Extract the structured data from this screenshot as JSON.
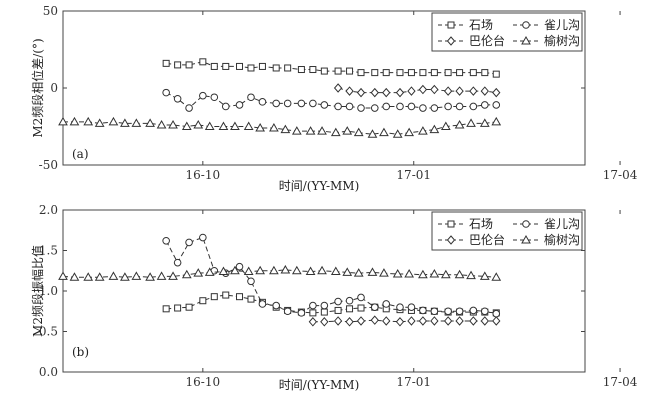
{
  "chart_data": [
    {
      "type": "line",
      "panel_label": "(a)",
      "ylabel": "M2频段相位差/(°)",
      "xlabel": "时间/(YY-MM)",
      "ylim": [
        -50,
        50
      ],
      "yticks": [
        -50,
        0,
        50
      ],
      "xlim": [
        -61,
        128
      ],
      "xticks": [
        {
          "label": "16-10",
          "value": 0
        },
        {
          "label": "17-01",
          "value": 92
        },
        {
          "label": "17-04",
          "value": 182
        }
      ],
      "legend_position": "top-right",
      "series": [
        {
          "name": "石场",
          "marker": "square",
          "x": [
            -16,
            -11,
            -6,
            0,
            5,
            10,
            16,
            21,
            26,
            32,
            37,
            43,
            48,
            53,
            59,
            64,
            69,
            75,
            80,
            86,
            91,
            96,
            101,
            107,
            112,
            118,
            123,
            128
          ],
          "y": [
            16,
            15,
            15,
            17,
            14,
            14,
            14,
            13,
            14,
            13,
            13,
            12,
            12,
            11,
            11,
            11,
            10,
            10,
            10,
            10,
            10,
            10,
            10,
            10,
            10,
            10,
            10,
            9
          ]
        },
        {
          "name": "雀儿沟",
          "marker": "circle",
          "x": [
            -16,
            -11,
            -6,
            0,
            5,
            10,
            16,
            21,
            26,
            32,
            37,
            43,
            48,
            53,
            59,
            64,
            69,
            75,
            80,
            86,
            91,
            96,
            101,
            107,
            112,
            118,
            123,
            128
          ],
          "y": [
            -3,
            -7,
            -13,
            -5,
            -6,
            -12,
            -11,
            -6,
            -9,
            -10,
            -10,
            -10,
            -10,
            -11,
            -12,
            -12,
            -13,
            -13,
            -12,
            -12,
            -12,
            -13,
            -13,
            -12,
            -12,
            -12,
            -11,
            -11
          ]
        },
        {
          "name": "巴伦台",
          "marker": "diamond",
          "x": [
            59,
            64,
            69,
            75,
            80,
            86,
            91,
            96,
            101,
            107,
            112,
            118,
            123,
            128
          ],
          "y": [
            0,
            -2,
            -3,
            -3,
            -3,
            -3,
            -2,
            -1,
            -1,
            -2,
            -2,
            -2,
            -2,
            -3
          ]
        },
        {
          "name": "榆树沟",
          "marker": "triangle",
          "x": [
            -61,
            -56,
            -50,
            -45,
            -39,
            -34,
            -29,
            -23,
            -18,
            -13,
            -7,
            -2,
            3,
            9,
            14,
            20,
            25,
            31,
            36,
            41,
            47,
            52,
            58,
            63,
            68,
            74,
            79,
            85,
            90,
            96,
            101,
            106,
            112,
            117,
            123,
            128
          ],
          "y": [
            -22,
            -22,
            -22,
            -23,
            -22,
            -23,
            -23,
            -23,
            -24,
            -24,
            -25,
            -24,
            -25,
            -25,
            -25,
            -25,
            -26,
            -26,
            -27,
            -28,
            -28,
            -28,
            -29,
            -28,
            -29,
            -30,
            -29,
            -30,
            -29,
            -28,
            -27,
            -25,
            -24,
            -23,
            -23,
            -22
          ]
        }
      ]
    },
    {
      "type": "line",
      "panel_label": "(b)",
      "ylabel": "M2频段振幅比值",
      "xlabel": "时间/(YY-MM)",
      "ylim": [
        0,
        2.0
      ],
      "yticks": [
        0.0,
        0.5,
        1.0,
        1.5,
        2.0
      ],
      "xlim": [
        -61,
        128
      ],
      "xticks": [
        {
          "label": "16-10",
          "value": 0
        },
        {
          "label": "17-01",
          "value": 92
        },
        {
          "label": "17-04",
          "value": 182
        }
      ],
      "legend_position": "top-right",
      "series": [
        {
          "name": "石场",
          "marker": "square",
          "x": [
            -16,
            -11,
            -6,
            0,
            5,
            10,
            16,
            21,
            26,
            32,
            37,
            43,
            48,
            53,
            59,
            64,
            69,
            75,
            80,
            86,
            91,
            96,
            101,
            107,
            112,
            118,
            123,
            128
          ],
          "y": [
            0.78,
            0.79,
            0.8,
            0.88,
            0.93,
            0.95,
            0.93,
            0.9,
            0.86,
            0.8,
            0.76,
            0.74,
            0.73,
            0.74,
            0.76,
            0.78,
            0.79,
            0.8,
            0.78,
            0.77,
            0.76,
            0.76,
            0.75,
            0.74,
            0.74,
            0.74,
            0.74,
            0.73
          ]
        },
        {
          "name": "雀儿沟",
          "marker": "circle",
          "x": [
            -16,
            -11,
            -6,
            0,
            5,
            10,
            16,
            21,
            26,
            32,
            37,
            43,
            48,
            53,
            59,
            64,
            69,
            75,
            80,
            86,
            91,
            96,
            101,
            107,
            112,
            118,
            123,
            128
          ],
          "y": [
            1.62,
            1.35,
            1.6,
            1.66,
            1.25,
            1.22,
            1.3,
            1.12,
            0.84,
            0.82,
            0.75,
            0.73,
            0.82,
            0.82,
            0.87,
            0.88,
            0.92,
            0.8,
            0.84,
            0.8,
            0.8,
            0.76,
            0.75,
            0.75,
            0.75,
            0.76,
            0.75,
            0.72
          ]
        },
        {
          "name": "巴伦台",
          "marker": "diamond",
          "x": [
            48,
            53,
            59,
            64,
            69,
            75,
            80,
            86,
            91,
            96,
            101,
            107,
            112,
            118,
            123,
            128
          ],
          "y": [
            0.62,
            0.62,
            0.63,
            0.62,
            0.63,
            0.64,
            0.63,
            0.62,
            0.63,
            0.63,
            0.63,
            0.63,
            0.63,
            0.63,
            0.63,
            0.63
          ]
        },
        {
          "name": "榆树沟",
          "marker": "triangle",
          "x": [
            -61,
            -56,
            -50,
            -45,
            -39,
            -34,
            -29,
            -23,
            -18,
            -13,
            -7,
            -2,
            3,
            9,
            14,
            20,
            25,
            31,
            36,
            41,
            47,
            52,
            58,
            63,
            68,
            74,
            79,
            85,
            90,
            96,
            101,
            106,
            112,
            117,
            123,
            128
          ],
          "y": [
            1.18,
            1.17,
            1.17,
            1.17,
            1.18,
            1.17,
            1.18,
            1.17,
            1.18,
            1.18,
            1.2,
            1.22,
            1.23,
            1.24,
            1.25,
            1.24,
            1.25,
            1.25,
            1.26,
            1.25,
            1.24,
            1.25,
            1.24,
            1.23,
            1.22,
            1.23,
            1.22,
            1.21,
            1.21,
            1.2,
            1.21,
            1.2,
            1.2,
            1.19,
            1.18,
            1.17
          ]
        }
      ]
    }
  ]
}
